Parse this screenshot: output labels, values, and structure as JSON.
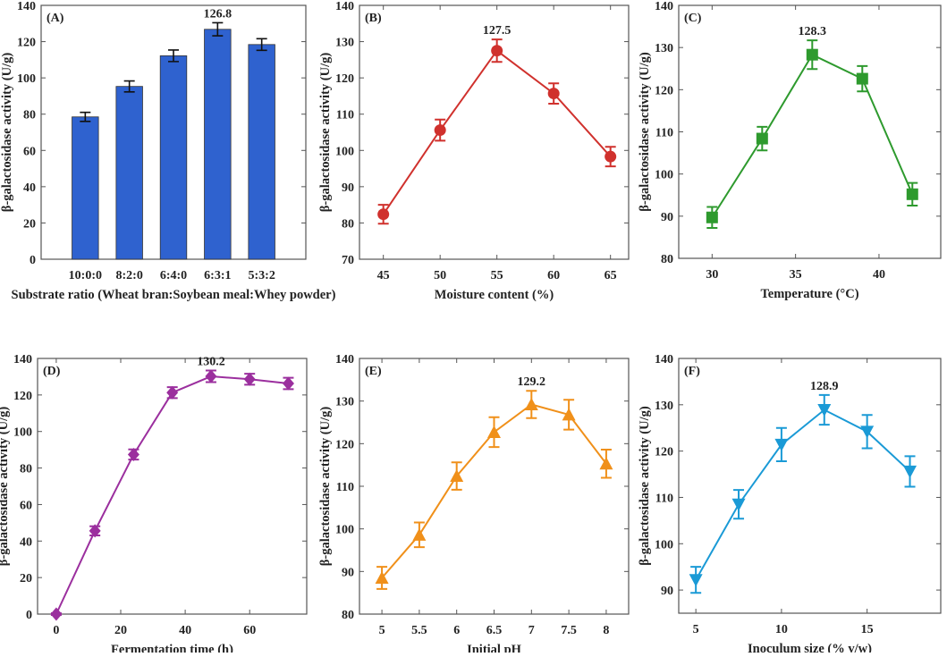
{
  "chart_data": [
    {
      "panel": "(A)",
      "type": "bar",
      "categories": [
        "10:0:0",
        "8:2:0",
        "6:4:0",
        "6:3:1",
        "5:3:2"
      ],
      "values": [
        78.5,
        95.3,
        112.2,
        126.8,
        118.4
      ],
      "errors": [
        2.5,
        3.0,
        3.2,
        3.6,
        3.2
      ],
      "annotation": {
        "index": 3,
        "text": "126.8"
      },
      "xlabel": "Substrate ratio (Wheat bran:Soybean meal:Whey powder)",
      "ylabel": "β-galactosidase activity (U/g)",
      "ylim": [
        0,
        140
      ],
      "yticks": [
        0,
        20,
        40,
        60,
        80,
        100,
        120,
        140
      ],
      "color": "#2f62cf"
    },
    {
      "panel": "(B)",
      "type": "line",
      "marker": "circle",
      "x": [
        45,
        50,
        55,
        60,
        65
      ],
      "values": [
        82.4,
        105.6,
        127.5,
        115.7,
        98.3
      ],
      "errors": [
        2.6,
        2.9,
        3.1,
        2.8,
        2.7
      ],
      "annotation": {
        "index": 2,
        "text": "127.5"
      },
      "xlabel": "Moisture content (%)",
      "ylabel": "β-galactosidase activity (U/g)",
      "xlim": [
        42.9,
        66.6
      ],
      "xticks": [
        45,
        50,
        55,
        60,
        65
      ],
      "ylim": [
        70,
        140
      ],
      "yticks": [
        70,
        80,
        90,
        100,
        110,
        120,
        130,
        140
      ],
      "color": "#d0312d"
    },
    {
      "panel": "(C)",
      "type": "line",
      "marker": "square",
      "x": [
        30,
        33,
        36,
        39,
        42
      ],
      "values": [
        89.7,
        108.4,
        128.3,
        122.6,
        95.2
      ],
      "errors": [
        2.5,
        2.8,
        3.4,
        3.0,
        2.7
      ],
      "annotation": {
        "index": 2,
        "text": "128.3"
      },
      "xlabel": "Temperature (°C)",
      "ylabel": "β-galactosidase activity (U/g)",
      "xlim": [
        28,
        43.7
      ],
      "xticks": [
        30,
        35,
        40
      ],
      "ylim": [
        80,
        140
      ],
      "yticks": [
        80,
        90,
        100,
        110,
        120,
        130,
        140
      ],
      "color": "#2e9a2e"
    },
    {
      "panel": "(D)",
      "type": "line",
      "marker": "diamond",
      "x": [
        0,
        12,
        24,
        36,
        48,
        60,
        72
      ],
      "values": [
        0,
        45.6,
        87.4,
        121.3,
        130.2,
        128.6,
        126.3
      ],
      "errors": [
        0.5,
        2.5,
        2.8,
        3.0,
        3.2,
        3.0,
        3.1
      ],
      "annotation": {
        "index": 4,
        "text": "130.2"
      },
      "xlabel": "Fermentation time (h)",
      "ylabel": "β-galactosidase activity (U/g)",
      "xlim": [
        -5.8,
        77.7
      ],
      "xticks": [
        0,
        20,
        40,
        60
      ],
      "ylim": [
        0,
        140
      ],
      "yticks": [
        0,
        20,
        40,
        60,
        80,
        100,
        120,
        140
      ],
      "color": "#9b2f9e"
    },
    {
      "panel": "(E)",
      "type": "line",
      "marker": "triangle-up",
      "x": [
        5,
        5.5,
        6,
        6.5,
        7,
        7.5,
        8
      ],
      "values": [
        88.5,
        98.6,
        112.4,
        122.7,
        129.2,
        126.8,
        115.3
      ],
      "errors": [
        2.6,
        2.9,
        3.2,
        3.5,
        3.2,
        3.5,
        3.3
      ],
      "annotation": {
        "index": 4,
        "text": "129.2"
      },
      "xlabel": "Initial pH",
      "ylabel": "β-galactosidase activity (U/g)",
      "xlim": [
        4.7,
        8.3
      ],
      "xticks": [
        5,
        5.5,
        6,
        6.5,
        7,
        7.5,
        8
      ],
      "ylim": [
        80,
        140
      ],
      "yticks": [
        80,
        90,
        100,
        110,
        120,
        130,
        140
      ],
      "color": "#f0901a"
    },
    {
      "panel": "(F)",
      "type": "line",
      "marker": "triangle-down",
      "x": [
        5,
        7.5,
        10,
        12.5,
        15,
        17.5
      ],
      "values": [
        92.2,
        108.5,
        121.4,
        128.9,
        124.2,
        115.6
      ],
      "errors": [
        2.8,
        3.1,
        3.6,
        3.2,
        3.6,
        3.3
      ],
      "annotation": {
        "index": 3,
        "text": "128.9"
      },
      "xlabel": "Inoculum size (% v/w)",
      "ylabel": "β-galactosidase activity (U/g)",
      "xlim": [
        4,
        19.3
      ],
      "xticks": [
        5,
        10,
        15
      ],
      "ylim": [
        85,
        140
      ],
      "yticks": [
        90,
        100,
        110,
        120,
        130,
        140
      ],
      "color": "#1a9ad6"
    }
  ]
}
